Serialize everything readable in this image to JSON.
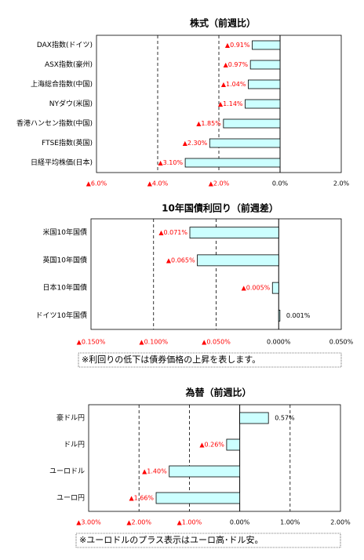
{
  "chart_data": [
    {
      "type": "bar",
      "orientation": "horizontal",
      "title": "株式（前週比）",
      "categories": [
        "DAX指数(ドイツ)",
        "ASX指数(豪州)",
        "上海総合指数(中国)",
        "NYダウ(米国)",
        "香港ハンセン指数(中国)",
        "FTSE指数(英国)",
        "日経平均株価(日本)"
      ],
      "values": [
        -0.91,
        -0.97,
        -1.04,
        -1.14,
        -1.85,
        -2.3,
        -3.1
      ],
      "value_labels": [
        "▲0.91%",
        "▲0.97%",
        "▲1.04%",
        "▲1.14%",
        "▲1.85%",
        "▲2.30%",
        "▲3.10%"
      ],
      "xlim": [
        -6,
        2
      ],
      "xticks": [
        {
          "value": -6,
          "label": "▲6.0%"
        },
        {
          "value": -4,
          "label": "▲4.0%"
        },
        {
          "value": -2,
          "label": "▲2.0%"
        },
        {
          "value": 0,
          "label": "0.0%"
        },
        {
          "value": 2,
          "label": "2.0%"
        }
      ],
      "grid": true,
      "color": "#ccffff",
      "negative_color": "#ff0000"
    },
    {
      "type": "bar",
      "orientation": "horizontal",
      "title": "10年国債利回り（前週差）",
      "categories": [
        "米国10年国債",
        "英国10年国債",
        "日本10年国債",
        "ドイツ10年国債"
      ],
      "values": [
        -0.071,
        -0.065,
        -0.005,
        0.001
      ],
      "value_labels": [
        "▲0.071%",
        "▲0.065%",
        "▲0.005%",
        "0.001%"
      ],
      "xlim": [
        -0.15,
        0.05
      ],
      "xticks": [
        {
          "value": -0.15,
          "label": "▲0.150%"
        },
        {
          "value": -0.1,
          "label": "▲0.100%"
        },
        {
          "value": -0.05,
          "label": "▲0.050%"
        },
        {
          "value": 0,
          "label": "0.000%"
        },
        {
          "value": 0.05,
          "label": "0.050%"
        }
      ],
      "grid": true,
      "color": "#ccffff",
      "negative_color": "#ff0000",
      "note": "※利回りの低下は債券価格の上昇を表します。"
    },
    {
      "type": "bar",
      "orientation": "horizontal",
      "title": "為替（前週比）",
      "categories": [
        "豪ドル円",
        "ドル円",
        "ユーロドル",
        "ユーロ円"
      ],
      "values": [
        0.57,
        -0.26,
        -1.4,
        -1.66
      ],
      "value_labels": [
        "0.57%",
        "▲0.26%",
        "▲1.40%",
        "▲1.66%"
      ],
      "xlim": [
        -3,
        2
      ],
      "xticks": [
        {
          "value": -3,
          "label": "▲3.00%"
        },
        {
          "value": -2,
          "label": "▲2.00%"
        },
        {
          "value": -1,
          "label": "▲1.00%"
        },
        {
          "value": 0,
          "label": "0.00%"
        },
        {
          "value": 1,
          "label": "1.00%"
        },
        {
          "value": 2,
          "label": "2.00%"
        }
      ],
      "grid": true,
      "color": "#ccffff",
      "negative_color": "#ff0000",
      "note": "※ユーロドルのプラス表示はユーロ高･ドル安。"
    }
  ]
}
